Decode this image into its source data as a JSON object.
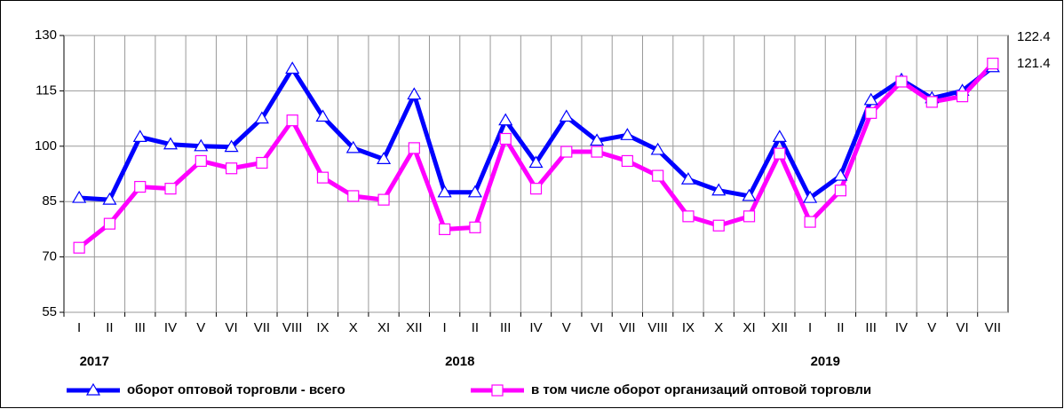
{
  "chart_data": {
    "type": "line",
    "categories": [
      "I",
      "II",
      "III",
      "IV",
      "V",
      "VI",
      "VII",
      "VIII",
      "IX",
      "X",
      "XI",
      "XII",
      "I",
      "II",
      "III",
      "IV",
      "V",
      "VI",
      "VII",
      "VIII",
      "IX",
      "X",
      "XI",
      "XII",
      "I",
      "II",
      "III",
      "IV",
      "V",
      "VI",
      "VII"
    ],
    "year_labels": [
      "2017",
      "2018",
      "2019"
    ],
    "series": [
      {
        "name": "оборот оптовой  торговли - всего",
        "color": "#0000ff",
        "marker": "triangle",
        "values": [
          86,
          85.5,
          102.5,
          100.5,
          100,
          99.8,
          107.5,
          121,
          108,
          99.5,
          96.5,
          114,
          87.5,
          87.5,
          107,
          95.5,
          108,
          101.5,
          103,
          99,
          91,
          88,
          86.5,
          102.5,
          86,
          92,
          112.5,
          118,
          113,
          115,
          121.4
        ]
      },
      {
        "name": "в том числе оборот организаций оптовой торговли",
        "color": "#ff00ff",
        "marker": "square",
        "values": [
          72.5,
          79,
          89,
          88.5,
          96,
          94,
          95.5,
          107,
          91.5,
          86.5,
          85.5,
          99.5,
          77.5,
          78,
          102,
          88.5,
          98.5,
          98.5,
          96,
          92,
          81,
          78.5,
          81,
          98,
          79.5,
          88,
          109,
          117.5,
          112,
          113.5,
          122.4
        ]
      }
    ],
    "ylim": [
      55,
      130
    ],
    "yticks": [
      55,
      70,
      85,
      100,
      115,
      130
    ],
    "grid": true
  }
}
